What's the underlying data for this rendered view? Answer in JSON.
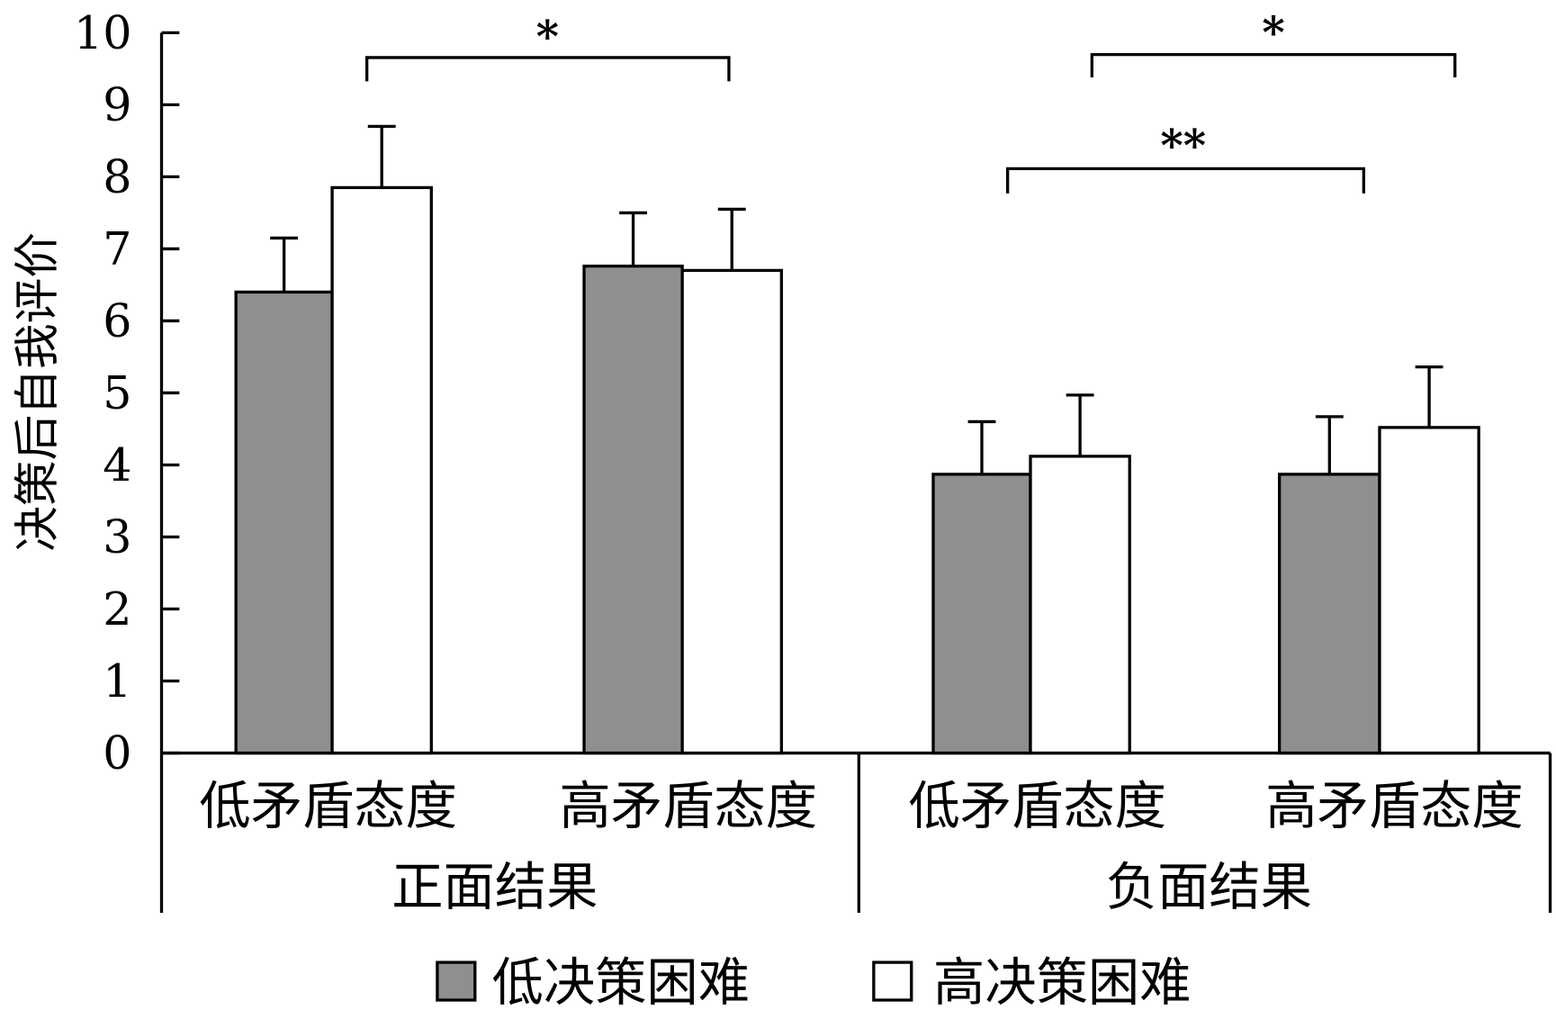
{
  "chart_data": {
    "type": "bar",
    "ylabel": "决策后自我评价",
    "ylim": [
      0,
      10
    ],
    "yticks": [
      0,
      1,
      2,
      3,
      4,
      5,
      6,
      7,
      8,
      9,
      10
    ],
    "grid": false,
    "groups": [
      {
        "label": "正面结果",
        "categories": [
          "低矛盾态度",
          "高矛盾态度"
        ]
      },
      {
        "label": "负面结果",
        "categories": [
          "低矛盾态度",
          "高矛盾态度"
        ]
      }
    ],
    "categories": [
      "正面结果-低矛盾态度",
      "正面结果-高矛盾态度",
      "负面结果-低矛盾态度",
      "负面结果-高矛盾态度"
    ],
    "series": [
      {
        "name": "低决策困难",
        "color": "#8f8f8f",
        "values": [
          6.4,
          6.76,
          3.87,
          3.87
        ],
        "error": [
          0.75,
          0.74,
          0.73,
          0.8
        ]
      },
      {
        "name": "高决策困难",
        "color": "#ffffff",
        "values": [
          7.85,
          6.7,
          4.12,
          4.52
        ],
        "error": [
          0.85,
          0.85,
          0.85,
          0.84
        ]
      }
    ],
    "legend_position": "bottom-center",
    "annotations": [
      {
        "label": "*",
        "from": "正面结果-低矛盾态度/高决策困难",
        "to": "正面结果-高矛盾态度/高决策困难"
      },
      {
        "label": "*",
        "from": "负面结果-低矛盾态度/高决策困难",
        "to": "负面结果-高矛盾态度/高决策困难"
      },
      {
        "label": "**",
        "from": "负面结果-低矛盾态度/低决策困难",
        "to": "负面结果-高矛盾态度/低决策困难"
      }
    ]
  }
}
